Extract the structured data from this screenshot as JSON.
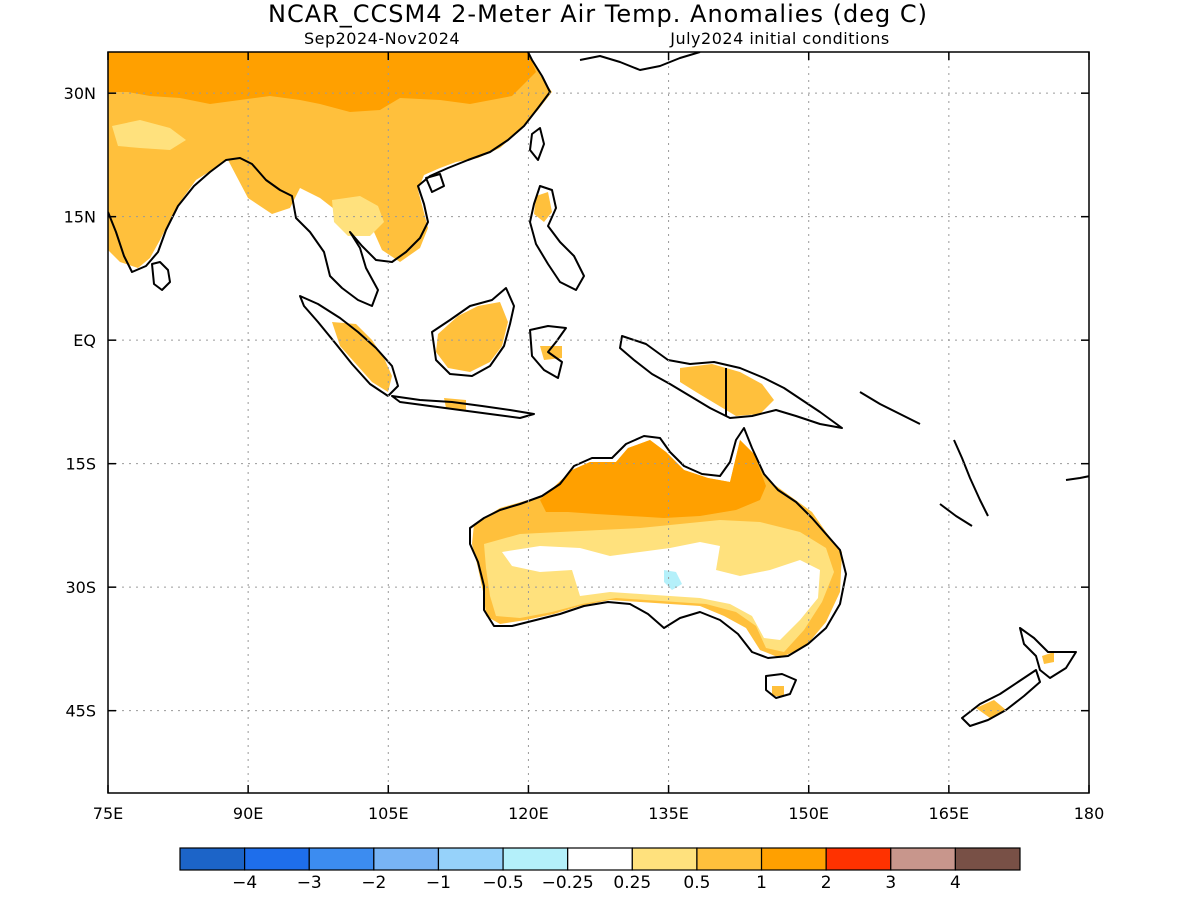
{
  "title": "NCAR_CCSM4 2-Meter Air Temp. Anomalies (deg C)",
  "subtitle_left": "Sep2024-Nov2024",
  "subtitle_right": "July2024 initial conditions",
  "map": {
    "lon_ticks": [
      {
        "value": 75,
        "label": "75E"
      },
      {
        "value": 90,
        "label": "90E"
      },
      {
        "value": 105,
        "label": "105E"
      },
      {
        "value": 120,
        "label": "120E"
      },
      {
        "value": 135,
        "label": "135E"
      },
      {
        "value": 150,
        "label": "150E"
      },
      {
        "value": 165,
        "label": "165E"
      },
      {
        "value": 180,
        "label": "180"
      }
    ],
    "lat_ticks": [
      {
        "value": 30,
        "label": "30N"
      },
      {
        "value": 15,
        "label": "15N"
      },
      {
        "value": 0,
        "label": "EQ"
      },
      {
        "value": -15,
        "label": "15S"
      },
      {
        "value": -30,
        "label": "30S"
      },
      {
        "value": -45,
        "label": "45S"
      }
    ],
    "lon_range": [
      75,
      180
    ],
    "lat_range": [
      -55,
      35
    ],
    "grid": true,
    "projection": "equirectangular"
  },
  "legend": {
    "bins": [
      {
        "color": "#1c64c8"
      },
      {
        "color": "#1e6eeb"
      },
      {
        "color": "#3c8cf0"
      },
      {
        "color": "#78b4f5"
      },
      {
        "color": "#96d2fa"
      },
      {
        "color": "#b4f0fa"
      },
      {
        "color": "#ffffff"
      },
      {
        "color": "#ffe17d"
      },
      {
        "color": "#ffc03c"
      },
      {
        "color": "#ffa000"
      },
      {
        "color": "#ff3200"
      },
      {
        "color": "#c8968c"
      },
      {
        "color": "#785046"
      }
    ],
    "labels": [
      "−4",
      "−3",
      "−2",
      "−1",
      "−0.5",
      "−0.25",
      "0.25",
      "0.5",
      "1",
      "2",
      "3",
      "4"
    ]
  },
  "anomaly_regions": [
    {
      "region": "South & East Asia",
      "category": "1",
      "color": "#ffc03c"
    },
    {
      "region": "Central China",
      "category": "2",
      "color": "#ffa000"
    },
    {
      "region": "Northern Australia",
      "category": "2",
      "color": "#ffa000"
    },
    {
      "region": "Western & Eastern Australia",
      "category": "1",
      "color": "#ffc03c"
    },
    {
      "region": "Central Australia",
      "category": "0.5",
      "color": "#ffe17d"
    },
    {
      "region": "Indochina",
      "category": "0.5",
      "color": "#ffe17d"
    },
    {
      "region": "Central Australia small patch",
      "category": "-0.5",
      "color": "#b4f0fa"
    }
  ]
}
